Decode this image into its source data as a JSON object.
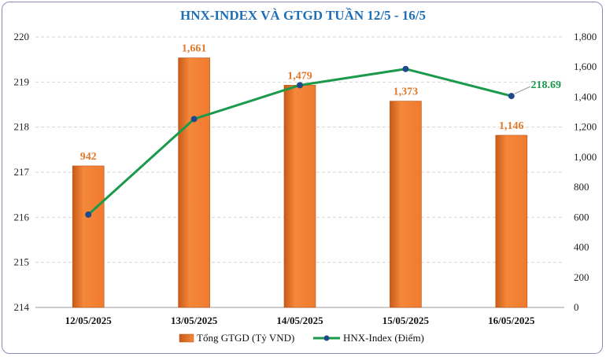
{
  "chart_data": {
    "type": "bar",
    "title": "HNX-INDEX VÀ GTGD TUẦN 12/5 - 16/5",
    "categories": [
      "12/05/2025",
      "13/05/2025",
      "14/05/2025",
      "15/05/2025",
      "16/05/2025"
    ],
    "series": [
      {
        "name": "Tổng GTGD (Tỷ VND)",
        "type": "bar",
        "axis": "right",
        "values": [
          942,
          1661,
          1479,
          1373,
          1146
        ],
        "labels": [
          "942",
          "1,661",
          "1,479",
          "1,373",
          "1,146"
        ],
        "color": "#f07a30"
      },
      {
        "name": "HNX-Index (Điểm)",
        "type": "line",
        "axis": "left",
        "values": [
          216.06,
          218.18,
          218.93,
          219.29,
          218.69
        ],
        "labels": [
          "",
          "",
          "",
          "",
          "218.69"
        ],
        "color": "#1a9a4a"
      }
    ],
    "y_left": {
      "min": 214,
      "max": 220,
      "ticks": [
        "214",
        "215",
        "216",
        "217",
        "218",
        "219",
        "220"
      ]
    },
    "y_right": {
      "min": 0,
      "max": 1800,
      "ticks": [
        "0",
        "200",
        "400",
        "600",
        "800",
        "1,000",
        "1,200",
        "1,400",
        "1,600",
        "1,800"
      ]
    },
    "grid": true,
    "legend_position": "bottom"
  }
}
